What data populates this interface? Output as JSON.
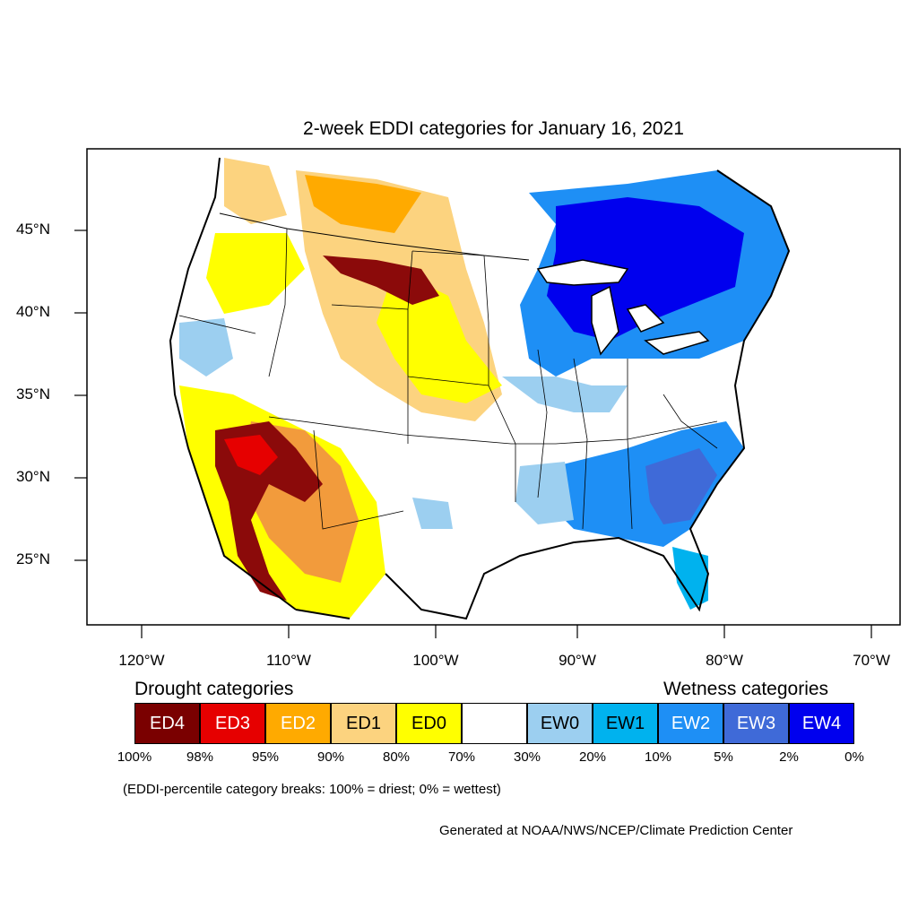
{
  "title": "2-week EDDI categories for January 16, 2021",
  "lat_labels": [
    "45°N",
    "40°N",
    "35°N",
    "30°N",
    "25°N"
  ],
  "lon_labels": [
    "120°W",
    "110°W",
    "100°W",
    "90°W",
    "80°W",
    "70°W"
  ],
  "legend": {
    "drought_heading": "Drought categories",
    "wetness_heading": "Wetness categories",
    "categories": [
      {
        "label": "ED4",
        "color": "#7a0000",
        "text_color": "#ffffff"
      },
      {
        "label": "ED3",
        "color": "#e60000",
        "text_color": "#ffffff"
      },
      {
        "label": "ED2",
        "color": "#ffaa00",
        "text_color": "#ffffff"
      },
      {
        "label": "ED1",
        "color": "#fcd37f",
        "text_color": "#000000"
      },
      {
        "label": "ED0",
        "color": "#ffff00",
        "text_color": "#000000"
      },
      {
        "label": "",
        "color": "#ffffff",
        "text_color": "#000000"
      },
      {
        "label": "EW0",
        "color": "#9ccff0",
        "text_color": "#000000"
      },
      {
        "label": "EW1",
        "color": "#00b2ee",
        "text_color": "#000000"
      },
      {
        "label": "EW2",
        "color": "#1e8ff5",
        "text_color": "#ffffff"
      },
      {
        "label": "EW3",
        "color": "#3f6ad8",
        "text_color": "#ffffff"
      },
      {
        "label": "EW4",
        "color": "#0000ee",
        "text_color": "#ffffff"
      }
    ],
    "percent_breaks": [
      "100%",
      "98%",
      "95%",
      "90%",
      "80%",
      "70%",
      "30%",
      "20%",
      "10%",
      "5%",
      "2%",
      "0%"
    ]
  },
  "footnote": "(EDDI-percentile category breaks: 100% = driest; 0% = wettest)",
  "credit": "Generated at NOAA/NWS/NCEP/Climate Prediction Center"
}
